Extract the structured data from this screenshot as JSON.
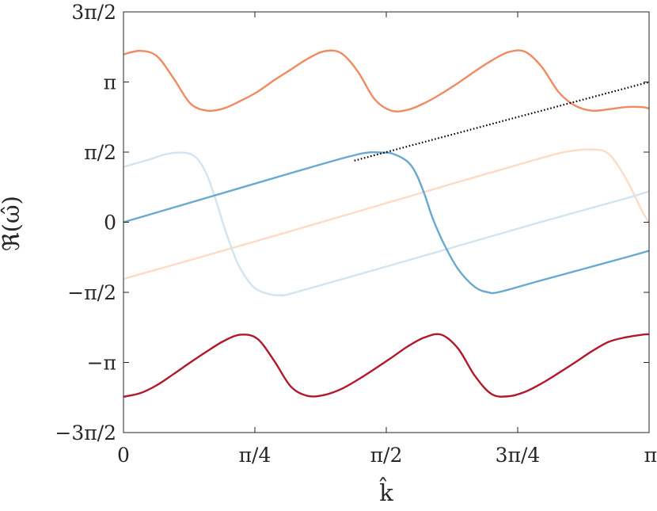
{
  "chart_data": {
    "type": "line",
    "xlabel": "k̂",
    "ylabel": "ℜ(ω̂)",
    "xlim": [
      0,
      3.14159265
    ],
    "ylim": [
      -4.71238898,
      4.71238898
    ],
    "x_tick_values": [
      0,
      0.78539816,
      1.57079633,
      2.35619449,
      3.14159265
    ],
    "x_tick_labels": [
      "0",
      "π/4",
      "π/2",
      "3π/4",
      "π"
    ],
    "y_tick_values": [
      -4.71238898,
      -3.14159265,
      -1.57079633,
      0,
      1.57079633,
      3.14159265,
      4.71238898
    ],
    "y_tick_labels": [
      "−3π/2",
      "−π",
      "−π/2",
      "0",
      "π/2",
      "π",
      "3π/2"
    ],
    "grid": false,
    "series": [
      {
        "color": "#ef8a62",
        "style": "solid",
        "x": [
          0,
          0.1,
          0.2,
          0.3,
          0.4,
          0.5,
          0.6,
          0.7,
          0.8,
          0.9,
          1.0,
          1.1,
          1.2,
          1.3,
          1.4,
          1.5,
          1.6,
          1.7,
          1.8,
          1.9,
          2.0,
          2.1,
          2.2,
          2.3,
          2.4,
          2.5,
          2.6,
          2.7,
          2.8,
          2.9,
          3.0,
          3.1,
          3.14
        ],
        "y": [
          3.76,
          3.84,
          3.72,
          3.22,
          2.66,
          2.5,
          2.55,
          2.72,
          2.92,
          3.18,
          3.42,
          3.66,
          3.83,
          3.79,
          3.38,
          2.76,
          2.5,
          2.52,
          2.67,
          2.88,
          3.12,
          3.38,
          3.62,
          3.81,
          3.82,
          3.48,
          2.92,
          2.61,
          2.5,
          2.53,
          2.58,
          2.58,
          2.55
        ]
      },
      {
        "color": "#fddbc7",
        "style": "solid",
        "x": [
          0,
          0.5,
          1.0,
          1.5,
          2.0,
          2.5,
          2.65,
          2.8,
          2.9,
          3.0,
          3.1,
          3.14
        ],
        "y": [
          -1.27,
          -0.74,
          -0.2,
          0.35,
          0.9,
          1.44,
          1.58,
          1.63,
          1.53,
          1.0,
          0.25,
          0.0
        ]
      },
      {
        "color": "#d1e5f0",
        "style": "solid",
        "x": [
          0,
          0.15,
          0.25,
          0.33,
          0.4,
          0.45,
          0.5,
          0.55,
          0.6,
          0.65,
          0.7,
          0.78,
          0.88,
          0.95,
          1.0,
          1.5,
          2.0,
          2.5,
          3.0,
          3.14
        ],
        "y": [
          1.24,
          1.4,
          1.52,
          1.56,
          1.53,
          1.38,
          1.05,
          0.52,
          -0.08,
          -0.62,
          -1.05,
          -1.46,
          -1.62,
          -1.63,
          -1.6,
          -1.07,
          -0.53,
          0.01,
          0.53,
          0.69
        ]
      },
      {
        "color": "#67a9cf",
        "style": "solid",
        "x": [
          0,
          0.5,
          1.0,
          1.4,
          1.55,
          1.62,
          1.7,
          1.75,
          1.8,
          1.85,
          1.92,
          2.0,
          2.1,
          2.18,
          2.25,
          2.5,
          3.0,
          3.14
        ],
        "y": [
          0.0,
          0.55,
          1.1,
          1.52,
          1.56,
          1.52,
          1.35,
          1.08,
          0.62,
          0.07,
          -0.52,
          -1.05,
          -1.45,
          -1.57,
          -1.56,
          -1.3,
          -0.79,
          -0.64
        ]
      },
      {
        "color": "#b2182b",
        "style": "solid",
        "x": [
          0,
          0.1,
          0.2,
          0.3,
          0.4,
          0.5,
          0.6,
          0.7,
          0.8,
          0.9,
          1.0,
          1.1,
          1.2,
          1.3,
          1.4,
          1.5,
          1.6,
          1.7,
          1.8,
          1.9,
          2.0,
          2.1,
          2.2,
          2.3,
          2.4,
          2.5,
          2.6,
          2.7,
          2.8,
          2.9,
          3.0,
          3.1,
          3.14
        ],
        "y": [
          -3.91,
          -3.83,
          -3.65,
          -3.4,
          -3.14,
          -2.89,
          -2.66,
          -2.52,
          -2.61,
          -3.1,
          -3.68,
          -3.89,
          -3.87,
          -3.74,
          -3.53,
          -3.29,
          -3.04,
          -2.78,
          -2.58,
          -2.52,
          -2.83,
          -3.44,
          -3.85,
          -3.9,
          -3.8,
          -3.61,
          -3.38,
          -3.14,
          -2.89,
          -2.68,
          -2.58,
          -2.52,
          -2.51
        ]
      },
      {
        "color": "#000000",
        "style": "dotted",
        "x": [
          1.38,
          3.14159265
        ],
        "y": [
          1.38,
          3.14159265
        ]
      }
    ]
  }
}
